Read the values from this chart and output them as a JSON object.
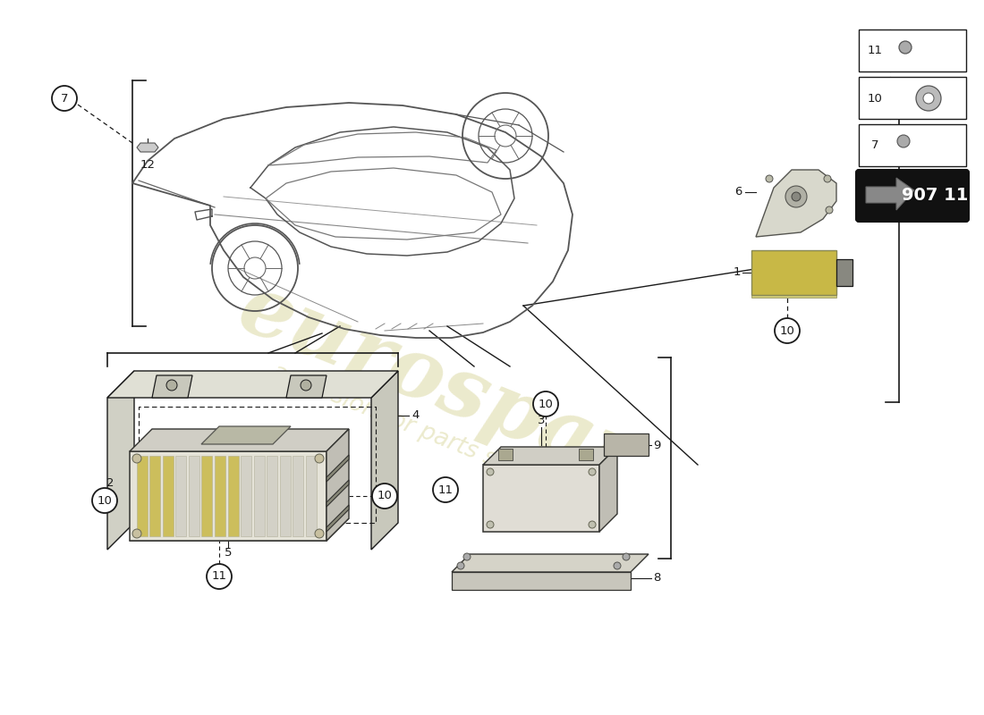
{
  "background_color": "#ffffff",
  "line_color": "#1a1a1a",
  "part_number": "907 11",
  "watermark_color": "#ccc87a",
  "watermark_alpha": 0.38,
  "car_color": "#444444",
  "ecu_gold": "#c8b846",
  "ecu_body": "#e8e6dc",
  "ecu_dark": "#555550",
  "part_gray": "#888880"
}
